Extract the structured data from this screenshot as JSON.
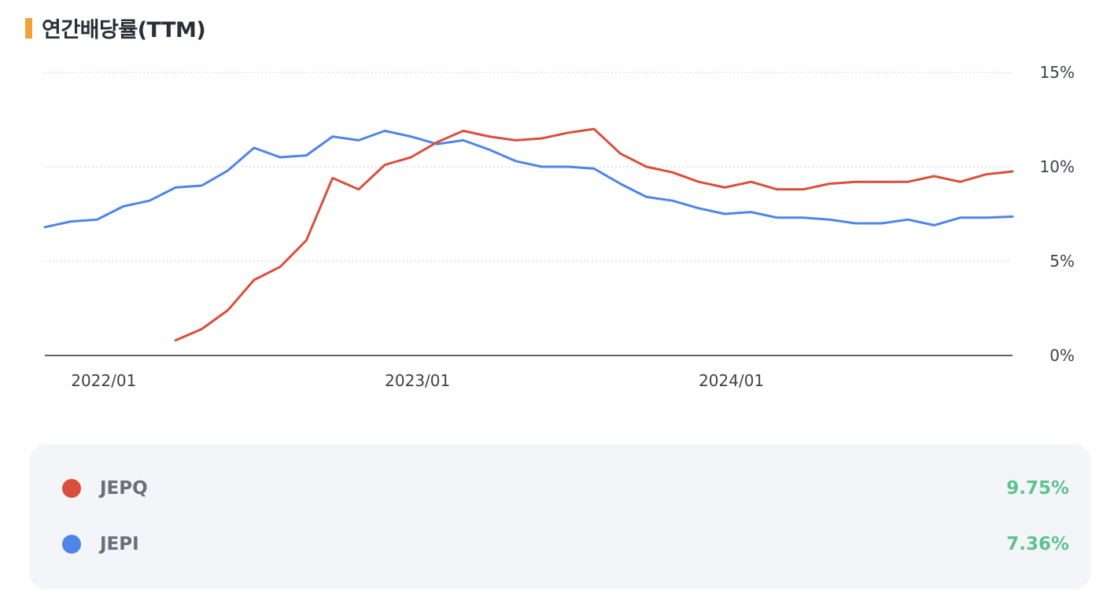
{
  "header": {
    "title": "연간배당률(TTM)"
  },
  "colors": {
    "jepq": "#d94f3d",
    "jepi": "#4f84e8",
    "accent": "#f0a13a",
    "value": "#5cc38e"
  },
  "chart_data": {
    "type": "line",
    "title": "연간배당률(TTM)",
    "xlabel": "",
    "ylabel": "",
    "x": [
      "2021-12",
      "2022-01",
      "2022-02",
      "2022-03",
      "2022-04",
      "2022-05",
      "2022-06",
      "2022-07",
      "2022-08",
      "2022-09",
      "2022-10",
      "2022-11",
      "2022-12",
      "2023-01",
      "2023-02",
      "2023-03",
      "2023-04",
      "2023-05",
      "2023-06",
      "2023-07",
      "2023-08",
      "2023-09",
      "2023-10",
      "2023-11",
      "2023-12",
      "2024-01",
      "2024-02",
      "2024-03",
      "2024-04",
      "2024-05",
      "2024-06",
      "2024-07",
      "2024-08",
      "2024-09",
      "2024-10",
      "2024-11",
      "2024-12",
      "2025-01"
    ],
    "x_ticks": [
      "2022/01",
      "2023/01",
      "2024/01"
    ],
    "y_ticks": [
      "15%",
      "10%",
      "5%",
      "0%"
    ],
    "ylim": [
      0,
      15
    ],
    "grid": true,
    "series": [
      {
        "name": "JEPQ",
        "values": [
          null,
          null,
          null,
          null,
          null,
          0.8,
          1.4,
          2.4,
          4.0,
          4.7,
          6.1,
          9.4,
          8.8,
          10.1,
          10.5,
          11.3,
          11.9,
          11.6,
          11.4,
          11.5,
          11.8,
          12.0,
          10.7,
          10.0,
          9.7,
          9.2,
          8.9,
          9.2,
          8.8,
          8.8,
          9.1,
          9.2,
          9.2,
          9.2,
          9.5,
          9.2,
          9.6,
          9.75
        ]
      },
      {
        "name": "JEPI",
        "values": [
          6.8,
          7.1,
          7.2,
          7.9,
          8.2,
          8.9,
          9.0,
          9.8,
          11.0,
          10.5,
          10.6,
          11.6,
          11.4,
          11.9,
          11.6,
          11.2,
          11.4,
          10.9,
          10.3,
          10.0,
          10.0,
          9.9,
          9.1,
          8.4,
          8.2,
          7.8,
          7.5,
          7.6,
          7.3,
          7.3,
          7.2,
          7.0,
          7.0,
          7.2,
          6.9,
          7.3,
          7.3,
          7.36
        ]
      }
    ]
  },
  "legend": [
    {
      "name": "JEPQ",
      "value": "9.75%",
      "color": "#d94f3d"
    },
    {
      "name": "JEPI",
      "value": "7.36%",
      "color": "#4f84e8"
    }
  ]
}
